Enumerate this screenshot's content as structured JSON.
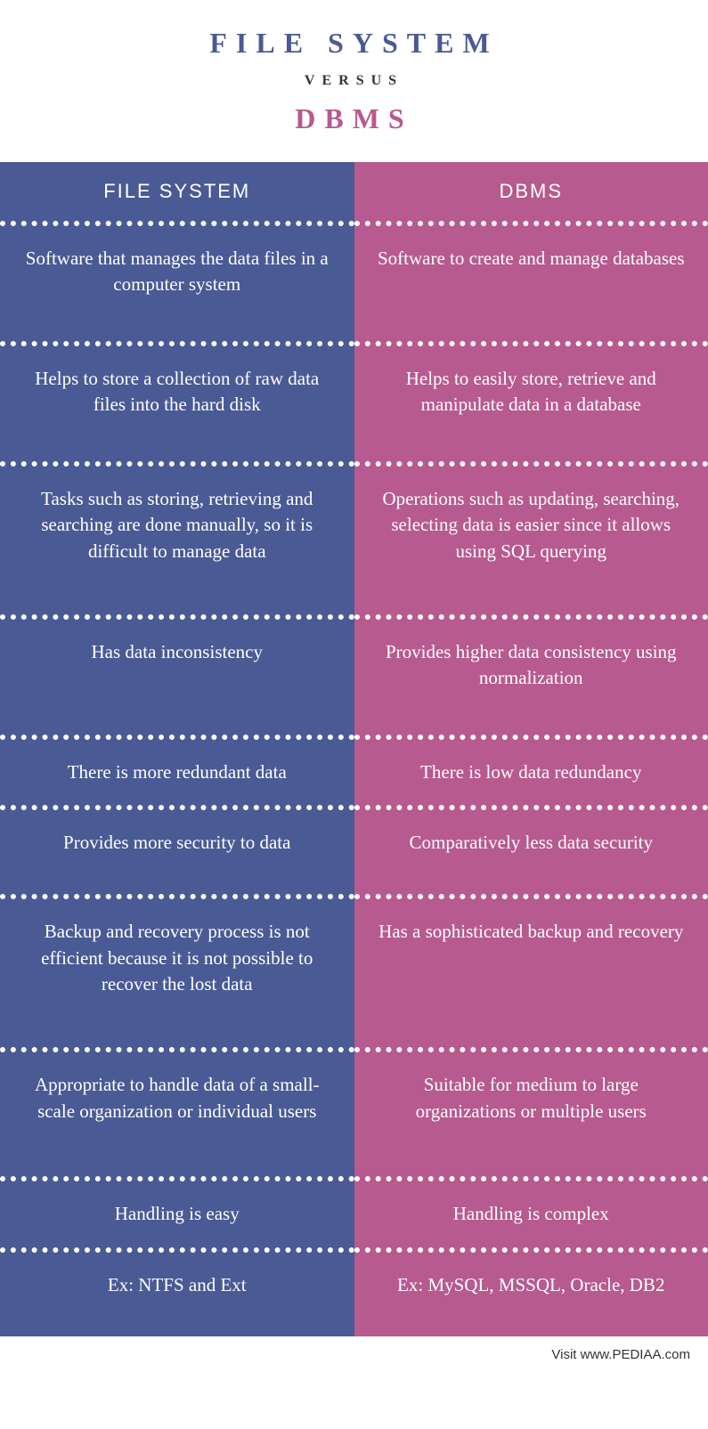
{
  "header": {
    "title_top": "FILE SYSTEM",
    "versus": "VERSUS",
    "title_bottom": "DBMS",
    "title_top_color": "#4a5a95",
    "title_bottom_color": "#b75a8f",
    "versus_color": "#333333"
  },
  "columns": {
    "left": {
      "header": "FILE SYSTEM",
      "bg_color": "#4a5a95"
    },
    "right": {
      "header": "DBMS",
      "bg_color": "#b75a8f"
    }
  },
  "rows": [
    {
      "left": "Software that manages the data files in a computer system",
      "right": "Software to create and manage databases"
    },
    {
      "left": "Helps to store a collection of raw data files into the hard disk",
      "right": "Helps to easily store, retrieve and manipulate data in a database"
    },
    {
      "left": "Tasks such as storing, retrieving and searching are done manually, so it is difficult to manage data",
      "right": "Operations such as updating, searching, selecting data is easier since it allows using SQL querying"
    },
    {
      "left": "Has data inconsistency",
      "right": "Provides higher data consistency using normalization"
    },
    {
      "left": "There is more redundant data",
      "right": "There is low data redundancy"
    },
    {
      "left": "Provides more security to data",
      "right": "Comparatively less data security"
    },
    {
      "left": "Backup and recovery process is not efficient because it is not possible to recover the lost data",
      "right": "Has a sophisticated backup and recovery"
    },
    {
      "left": "Appropriate to handle data of a small-scale organization or individual users",
      "right": "Suitable for medium to large organizations or multiple users"
    },
    {
      "left": "Handling is easy",
      "right": "Handling is complex"
    },
    {
      "left": "Ex: NTFS and Ext",
      "right": "Ex: MySQL, MSSQL, Oracle, DB2"
    }
  ],
  "footer": {
    "text": "Visit www.PEDIAA.com"
  },
  "styling": {
    "body_width": 795,
    "body_height": 1605,
    "text_color": "#ffffff",
    "divider_style": "dotted",
    "divider_color": "#ffffff",
    "cell_fontsize": 21,
    "header_fontsize": 22,
    "title_fontsize": 32
  }
}
